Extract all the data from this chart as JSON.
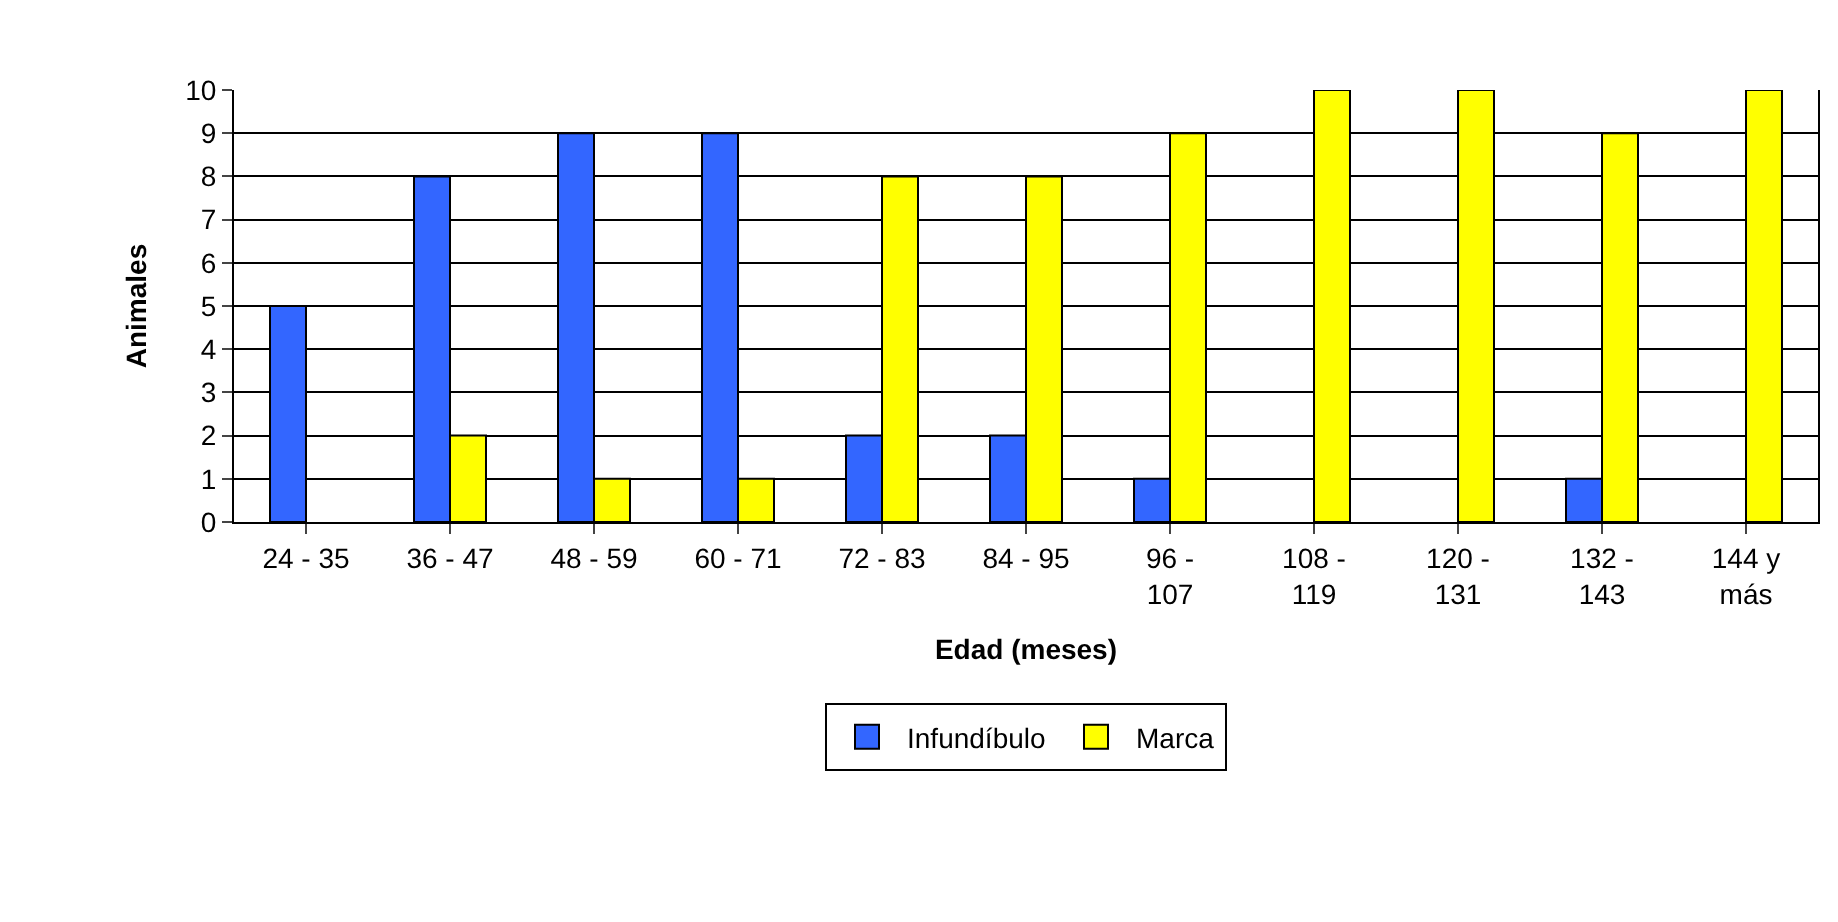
{
  "chart_data": {
    "type": "bar",
    "xlabel": "Edad (meses)",
    "ylabel": "Animales",
    "categories": [
      "24 - 35",
      "36 - 47",
      "48 - 59",
      "60 - 71",
      "72 - 83",
      "84 - 95",
      "96 - 107",
      "108 - 119",
      "120 - 131",
      "132 - 143",
      "144 y más"
    ],
    "series": [
      {
        "name": "Infundíbulo",
        "color": "#3366ff",
        "values": [
          5,
          8,
          9,
          9,
          2,
          2,
          1,
          null,
          null,
          1,
          null
        ]
      },
      {
        "name": "Marca",
        "color": "#ffff00",
        "values": [
          null,
          2,
          1,
          1,
          8,
          8,
          9,
          10,
          10,
          9,
          10
        ]
      }
    ],
    "ylim": [
      0,
      10
    ],
    "yticks": [
      0,
      1,
      2,
      3,
      4,
      5,
      6,
      7,
      8,
      9,
      10
    ],
    "grid": "y",
    "legend": "bottom"
  }
}
